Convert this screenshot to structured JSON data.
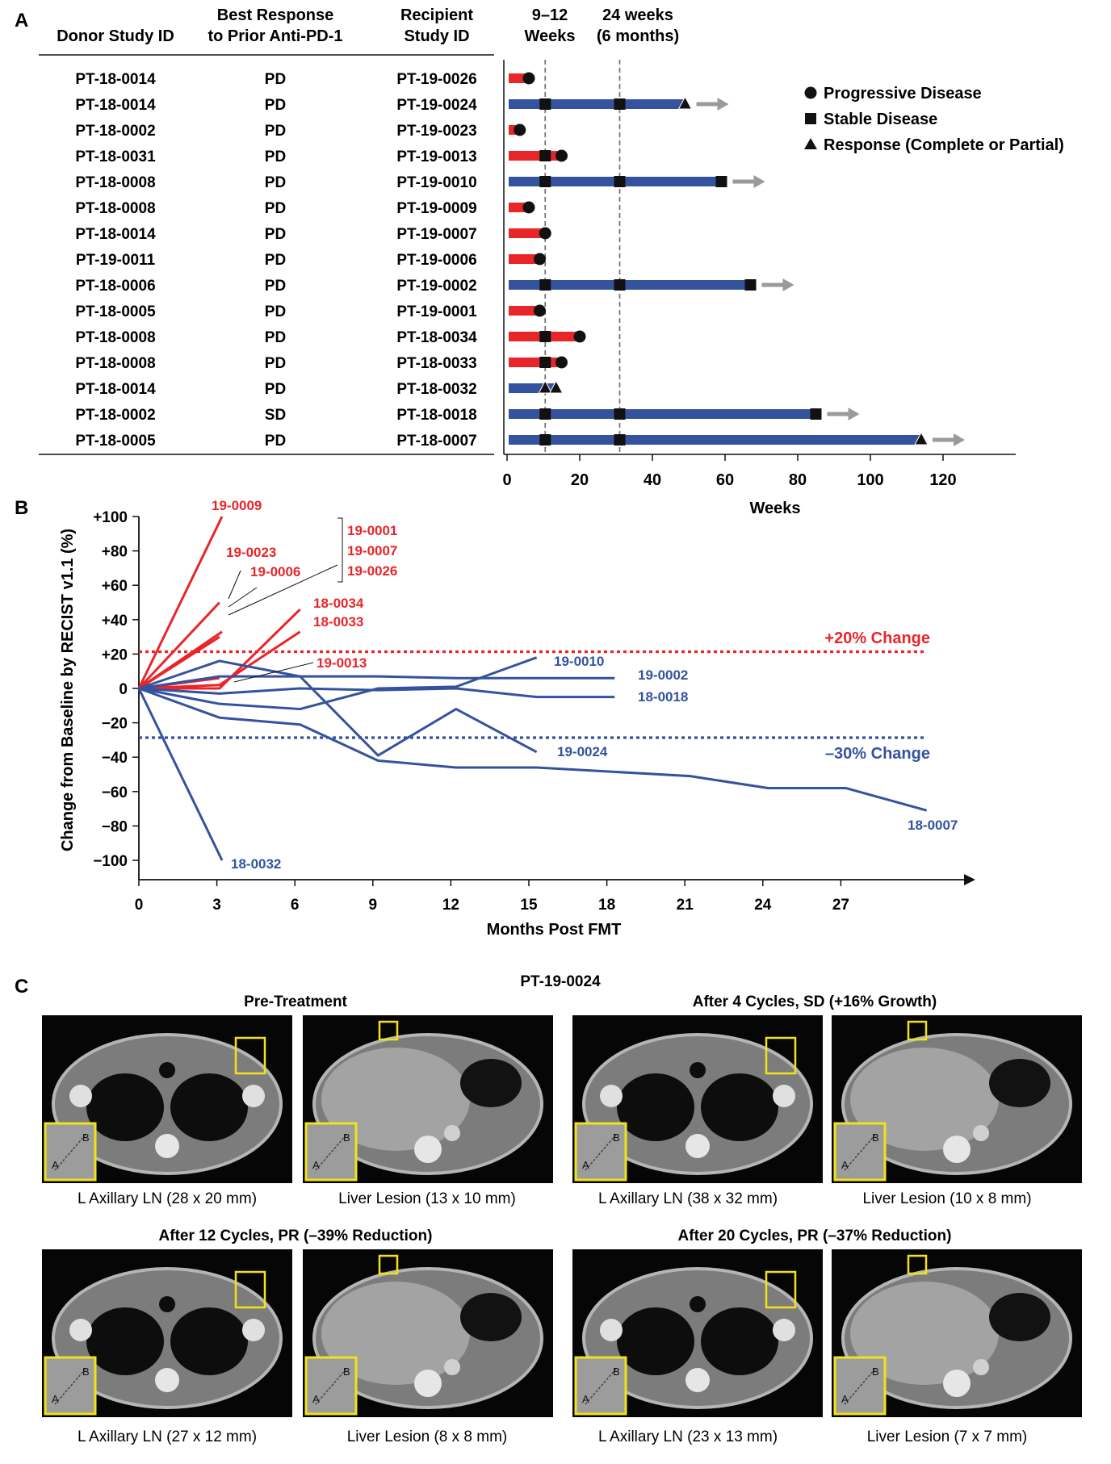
{
  "panel_a": {
    "letter": "A",
    "col_headers": {
      "donor": [
        "Donor Study ID"
      ],
      "best": [
        "Best Response",
        "to Prior Anti-PD-1"
      ],
      "recipient": [
        "Recipient",
        "Study ID"
      ]
    },
    "top_labels": {
      "weeks_9_12": [
        "9–12",
        "Weeks"
      ],
      "weeks_24": [
        "24 weeks",
        "(6 months)"
      ]
    },
    "legend": {
      "progressive": "Progressive Disease",
      "stable": "Stable Disease",
      "response": "Response (Complete or Partial)"
    },
    "xlabel": "Weeks",
    "ticks": [
      "0",
      "20",
      "40",
      "60",
      "80",
      "100",
      "120"
    ],
    "rows": [
      {
        "donor": "PT-18-0014",
        "best": "PD",
        "recipient": "PT-19-0026"
      },
      {
        "donor": "PT-18-0014",
        "best": "PD",
        "recipient": "PT-19-0024"
      },
      {
        "donor": "PT-18-0002",
        "best": "PD",
        "recipient": "PT-19-0023"
      },
      {
        "donor": "PT-18-0031",
        "best": "PD",
        "recipient": "PT-19-0013"
      },
      {
        "donor": "PT-18-0008",
        "best": "PD",
        "recipient": "PT-19-0010"
      },
      {
        "donor": "PT-18-0008",
        "best": "PD",
        "recipient": "PT-19-0009"
      },
      {
        "donor": "PT-18-0014",
        "best": "PD",
        "recipient": "PT-19-0007"
      },
      {
        "donor": "PT-19-0011",
        "best": "PD",
        "recipient": "PT-19-0006"
      },
      {
        "donor": "PT-18-0006",
        "best": "PD",
        "recipient": "PT-19-0002"
      },
      {
        "donor": "PT-18-0005",
        "best": "PD",
        "recipient": "PT-19-0001"
      },
      {
        "donor": "PT-18-0008",
        "best": "PD",
        "recipient": "PT-18-0034"
      },
      {
        "donor": "PT-18-0008",
        "best": "PD",
        "recipient": "PT-18-0033"
      },
      {
        "donor": "PT-18-0014",
        "best": "PD",
        "recipient": "PT-18-0032"
      },
      {
        "donor": "PT-18-0002",
        "best": "SD",
        "recipient": "PT-18-0018"
      },
      {
        "donor": "PT-18-0005",
        "best": "PD",
        "recipient": "PT-18-0007"
      }
    ]
  },
  "panel_b": {
    "letter": "B",
    "ylabel": "Change from Baseline by RECIST v1.1 (%)",
    "xlabel": "Months Post FMT",
    "yticks": [
      "+100",
      "+80",
      "+60",
      "+40",
      "+20",
      "0",
      "−20",
      "−40",
      "−60",
      "−80",
      "−100"
    ],
    "xticks": [
      "0",
      "3",
      "6",
      "9",
      "12",
      "15",
      "18",
      "21",
      "24",
      "27"
    ],
    "threshold_up": "+20% Change",
    "threshold_down": "–30% Change",
    "bracket_labels": [
      "19-0001",
      "19-0007",
      "19-0026"
    ]
  },
  "panel_c": {
    "letter": "C",
    "patient": "PT-19-0024",
    "groups": [
      {
        "title": "Pre-Treatment",
        "captions": [
          "L Axillary LN (28 x 20 mm)",
          "Liver Lesion (13 x 10 mm)"
        ]
      },
      {
        "title": "After 4 Cycles, SD (+16% Growth)",
        "captions": [
          "L Axillary LN (38 x 32 mm)",
          "Liver Lesion (10 x 8 mm)"
        ]
      },
      {
        "title": "After 12 Cycles, PR (–39% Reduction)",
        "captions": [
          "L Axillary LN (27 x 12 mm)",
          "Liver Lesion (8 x 8 mm)"
        ]
      },
      {
        "title": "After 20 Cycles, PR (–37% Reduction)",
        "captions": [
          "L Axillary LN (23 x 13 mm)",
          "Liver Lesion (7 x 7 mm)"
        ]
      }
    ],
    "inset_letters": [
      "A",
      "B"
    ]
  },
  "colors": {
    "progression": "#e8262a",
    "stable": "#34529e",
    "arrow": "#9a9a9a",
    "marker": "#111111"
  },
  "chart_data": [
    {
      "type": "bar",
      "orientation": "horizontal swimmer",
      "xlabel": "Weeks",
      "xlim": [
        0,
        120
      ],
      "reference_lines_weeks": [
        10.5,
        31
      ],
      "series": [
        {
          "recipient": "PT-19-0026",
          "color": "red",
          "end": 6,
          "markers": [
            [
              6,
              "progressive"
            ]
          ],
          "ongoing": false
        },
        {
          "recipient": "PT-19-0024",
          "color": "blue",
          "end": 49,
          "markers": [
            [
              10.5,
              "stable"
            ],
            [
              31,
              "stable"
            ],
            [
              49,
              "response"
            ]
          ],
          "ongoing": true
        },
        {
          "recipient": "PT-19-0023",
          "color": "red",
          "end": 3.5,
          "markers": [
            [
              3.5,
              "progressive"
            ]
          ],
          "ongoing": false
        },
        {
          "recipient": "PT-19-0013",
          "color": "red",
          "end": 15,
          "markers": [
            [
              10.5,
              "stable"
            ],
            [
              15,
              "progressive"
            ]
          ],
          "ongoing": false
        },
        {
          "recipient": "PT-19-0010",
          "color": "blue",
          "end": 59,
          "markers": [
            [
              10.5,
              "stable"
            ],
            [
              31,
              "stable"
            ],
            [
              59,
              "stable"
            ]
          ],
          "ongoing": true
        },
        {
          "recipient": "PT-19-0009",
          "color": "red",
          "end": 6,
          "markers": [
            [
              6,
              "progressive"
            ]
          ],
          "ongoing": false
        },
        {
          "recipient": "PT-19-0007",
          "color": "red",
          "end": 10.5,
          "markers": [
            [
              10.5,
              "progressive"
            ]
          ],
          "ongoing": false
        },
        {
          "recipient": "PT-19-0006",
          "color": "red",
          "end": 9,
          "markers": [
            [
              9,
              "progressive"
            ]
          ],
          "ongoing": false
        },
        {
          "recipient": "PT-19-0002",
          "color": "blue",
          "end": 67,
          "markers": [
            [
              10.5,
              "stable"
            ],
            [
              31,
              "stable"
            ],
            [
              67,
              "stable"
            ]
          ],
          "ongoing": true
        },
        {
          "recipient": "PT-19-0001",
          "color": "red",
          "end": 9,
          "markers": [
            [
              9,
              "progressive"
            ]
          ],
          "ongoing": false
        },
        {
          "recipient": "PT-18-0034",
          "color": "red",
          "end": 20,
          "markers": [
            [
              10.5,
              "stable"
            ],
            [
              20,
              "progressive"
            ]
          ],
          "ongoing": false
        },
        {
          "recipient": "PT-18-0033",
          "color": "red",
          "end": 15,
          "markers": [
            [
              10.5,
              "stable"
            ],
            [
              15,
              "progressive"
            ]
          ],
          "ongoing": false
        },
        {
          "recipient": "PT-18-0032",
          "color": "blue",
          "end": 13.5,
          "markers": [
            [
              10.5,
              "response"
            ],
            [
              13.5,
              "response"
            ]
          ],
          "ongoing": false
        },
        {
          "recipient": "PT-18-0018",
          "color": "blue",
          "end": 85,
          "markers": [
            [
              10.5,
              "stable"
            ],
            [
              31,
              "stable"
            ],
            [
              85,
              "stable"
            ]
          ],
          "ongoing": true
        },
        {
          "recipient": "PT-18-0007",
          "color": "blue",
          "end": 114,
          "markers": [
            [
              10.5,
              "stable"
            ],
            [
              31,
              "stable"
            ],
            [
              114,
              "response"
            ]
          ],
          "ongoing": true
        }
      ]
    },
    {
      "type": "line",
      "xlabel": "Months Post FMT",
      "ylabel": "Change from Baseline by RECIST v1.1 (%)",
      "xlim": [
        0,
        30
      ],
      "ylim": [
        -100,
        100
      ],
      "thresholds": [
        20,
        -30
      ],
      "series": [
        {
          "name": "19-0009",
          "color": "red",
          "x": [
            0,
            3.2
          ],
          "y": [
            0,
            100
          ]
        },
        {
          "name": "19-0023",
          "color": "red",
          "x": [
            0,
            3.1
          ],
          "y": [
            0,
            50
          ]
        },
        {
          "name": "19-0006",
          "color": "red",
          "x": [
            0,
            3.2
          ],
          "y": [
            0,
            33
          ]
        },
        {
          "name": "19-0001",
          "color": "red",
          "x": [
            0,
            3.1
          ],
          "y": [
            0,
            30
          ]
        },
        {
          "name": "19-0007",
          "color": "red",
          "x": [
            0,
            3.1
          ],
          "y": [
            0,
            30
          ]
        },
        {
          "name": "19-0026",
          "color": "red",
          "x": [
            0,
            3.1
          ],
          "y": [
            0,
            30
          ]
        },
        {
          "name": "18-0034",
          "color": "red",
          "x": [
            0,
            3.1,
            6.2
          ],
          "y": [
            0,
            0,
            46
          ]
        },
        {
          "name": "18-0033",
          "color": "red",
          "x": [
            0,
            3.1,
            6.2
          ],
          "y": [
            0,
            2,
            33
          ]
        },
        {
          "name": "19-0013",
          "color": "red",
          "x": [
            0,
            3.1
          ],
          "y": [
            0,
            6
          ]
        },
        {
          "name": "19-0010",
          "color": "blue",
          "x": [
            0,
            3.1,
            6.2,
            9.2,
            12.2,
            15.3
          ],
          "y": [
            0,
            -9,
            -12,
            0,
            1,
            18
          ]
        },
        {
          "name": "19-0002",
          "color": "blue",
          "x": [
            0,
            3.1,
            9.2,
            12.2,
            15.3,
            18.3
          ],
          "y": [
            0,
            7,
            7,
            6,
            6,
            6
          ]
        },
        {
          "name": "18-0018",
          "color": "blue",
          "x": [
            0,
            3.1,
            6.2,
            9.2,
            12.2,
            15.3,
            18.3
          ],
          "y": [
            0,
            -3,
            0,
            -1,
            0,
            -5,
            -5
          ]
        },
        {
          "name": "19-0024",
          "color": "blue",
          "x": [
            0,
            3.1,
            6.2,
            9.2,
            12.2,
            15.3
          ],
          "y": [
            0,
            16,
            7,
            -39,
            -12,
            -37
          ]
        },
        {
          "name": "18-0007",
          "color": "blue",
          "x": [
            0,
            3.1,
            6.2,
            9.2,
            12.2,
            15.3,
            21.2,
            24.2,
            27.2,
            30.3
          ],
          "y": [
            0,
            -17,
            -21,
            -42,
            -46,
            -46,
            -51,
            -58,
            -58,
            -71
          ]
        },
        {
          "name": "18-0032",
          "color": "blue",
          "x": [
            0,
            3.2
          ],
          "y": [
            0,
            -100
          ]
        }
      ]
    }
  ]
}
